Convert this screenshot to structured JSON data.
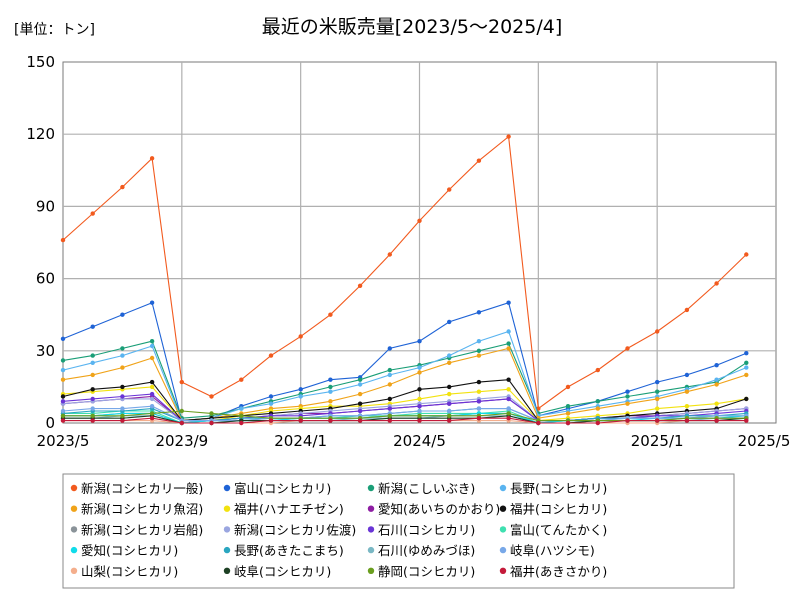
{
  "chart_data": {
    "type": "line",
    "title": "最近の米販売量[2023/5～2025/4]",
    "unit_label": "[単位：トン]",
    "ylim": [
      0,
      150
    ],
    "y_ticks": [
      0,
      30,
      60,
      90,
      120,
      150
    ],
    "x_tick_labels": [
      "2023/5",
      "2023/9",
      "2024/1",
      "2024/5",
      "2024/9",
      "2025/1",
      "2025/5"
    ],
    "grid": true,
    "legend_position": "bottom",
    "months": [
      "2023/5",
      "2023/6",
      "2023/7",
      "2023/8",
      "2023/9",
      "2023/10",
      "2023/11",
      "2023/12",
      "2024/1",
      "2024/2",
      "2024/3",
      "2024/4",
      "2024/5",
      "2024/6",
      "2024/7",
      "2024/8",
      "2024/9",
      "2024/10",
      "2024/11",
      "2024/12",
      "2025/1",
      "2025/2",
      "2025/3",
      "2025/4"
    ],
    "series": [
      {
        "name": "新潟(コシヒカリ一般)",
        "color": "#f25a1e",
        "values": [
          76,
          87,
          98,
          110,
          17,
          11,
          18,
          28,
          36,
          45,
          57,
          70,
          84,
          97,
          109,
          119,
          6,
          15,
          22,
          31,
          38,
          47,
          58,
          70
        ]
      },
      {
        "name": "富山(コシヒカリ)",
        "color": "#1f63d6",
        "values": [
          35,
          40,
          45,
          50,
          1,
          2,
          7,
          11,
          14,
          18,
          19,
          31,
          34,
          42,
          46,
          50,
          3,
          6,
          9,
          13,
          17,
          20,
          24,
          29
        ]
      },
      {
        "name": "新潟(こしいぶき)",
        "color": "#1a9e77",
        "values": [
          26,
          28,
          31,
          34,
          2,
          3,
          6,
          9,
          12,
          15,
          18,
          22,
          24,
          27,
          30,
          33,
          4,
          7,
          9,
          11,
          13,
          15,
          17,
          25
        ]
      },
      {
        "name": "長野(コシヒカリ)",
        "color": "#5ab4f0",
        "values": [
          22,
          25,
          28,
          32,
          1,
          2,
          6,
          8,
          11,
          13,
          16,
          20,
          23,
          28,
          34,
          38,
          3,
          5,
          7,
          9,
          11,
          14,
          18,
          23
        ]
      },
      {
        "name": "新潟(コシヒカリ魚沼)",
        "color": "#f0a319",
        "values": [
          18,
          20,
          23,
          27,
          1,
          2,
          4,
          6,
          7,
          9,
          12,
          16,
          21,
          25,
          28,
          31,
          2,
          4,
          6,
          8,
          10,
          13,
          16,
          20
        ]
      },
      {
        "name": "福井(ハナエチゼン)",
        "color": "#f2e20f",
        "values": [
          12,
          13,
          14,
          15,
          1,
          1,
          3,
          5,
          6,
          7,
          7,
          8,
          10,
          12,
          13,
          14,
          1,
          2,
          3,
          4,
          6,
          7,
          8,
          10
        ]
      },
      {
        "name": "愛知(あいちのかおり)",
        "color": "#8e1ea3",
        "values": [
          8,
          9,
          10,
          11,
          1,
          1,
          2,
          3,
          4,
          4,
          5,
          6,
          7,
          8,
          9,
          10,
          1,
          1,
          2,
          3,
          3,
          4,
          5,
          6
        ]
      },
      {
        "name": "福井(コシヒカリ)",
        "color": "#111111",
        "values": [
          11,
          14,
          15,
          17,
          1,
          2,
          3,
          4,
          5,
          6,
          8,
          10,
          14,
          15,
          17,
          18,
          1,
          1,
          2,
          3,
          4,
          5,
          6,
          10
        ]
      },
      {
        "name": "新潟(コシヒカリ岩船)",
        "color": "#8a9399",
        "values": [
          3,
          3,
          4,
          4,
          0,
          1,
          1,
          1,
          2,
          2,
          2,
          3,
          3,
          3,
          4,
          4,
          0,
          0,
          1,
          1,
          1,
          2,
          2,
          2
        ]
      },
      {
        "name": "新潟(コシヒカリ佐渡)",
        "color": "#9aa6e0",
        "values": [
          8,
          9,
          10,
          10,
          1,
          1,
          2,
          3,
          4,
          5,
          6,
          7,
          8,
          9,
          10,
          11,
          1,
          1,
          2,
          2,
          3,
          4,
          5,
          6
        ]
      },
      {
        "name": "石川(コシヒカリ)",
        "color": "#6a35d6",
        "values": [
          9,
          10,
          11,
          12,
          1,
          1,
          2,
          3,
          3,
          4,
          5,
          6,
          7,
          8,
          9,
          10,
          1,
          1,
          2,
          2,
          3,
          3,
          4,
          5
        ]
      },
      {
        "name": "富山(てんたかく)",
        "color": "#3fe0b0",
        "values": [
          4,
          4,
          5,
          5,
          0,
          1,
          1,
          2,
          2,
          2,
          3,
          3,
          4,
          4,
          4,
          5,
          0,
          1,
          1,
          2,
          2,
          2,
          3,
          3
        ]
      },
      {
        "name": "愛知(コシヒカリ)",
        "color": "#10dcea",
        "values": [
          3,
          3,
          4,
          4,
          0,
          1,
          1,
          1,
          2,
          2,
          2,
          3,
          3,
          3,
          4,
          4,
          0,
          1,
          1,
          1,
          2,
          2,
          2,
          3
        ]
      },
      {
        "name": "長野(あきたこまち)",
        "color": "#2aa6c0",
        "values": [
          4,
          5,
          5,
          6,
          1,
          1,
          2,
          2,
          2,
          3,
          3,
          4,
          5,
          5,
          6,
          6,
          1,
          1,
          2,
          2,
          2,
          3,
          3,
          4
        ]
      },
      {
        "name": "石川(ゆめみづほ)",
        "color": "#7ab8c4",
        "values": [
          2,
          2,
          3,
          3,
          0,
          0,
          1,
          1,
          1,
          1,
          2,
          2,
          2,
          3,
          3,
          3,
          0,
          0,
          1,
          1,
          1,
          1,
          2,
          2
        ]
      },
      {
        "name": "岐阜(ハツシモ)",
        "color": "#78a8e8",
        "values": [
          5,
          6,
          6,
          7,
          1,
          1,
          1,
          2,
          2,
          3,
          3,
          4,
          5,
          5,
          6,
          6,
          1,
          1,
          1,
          2,
          2,
          2,
          3,
          3
        ]
      },
      {
        "name": "山梨(コシヒカリ)",
        "color": "#f4ae8c",
        "values": [
          1,
          1,
          1,
          1,
          0,
          0,
          0,
          0,
          1,
          1,
          1,
          1,
          1,
          1,
          1,
          1,
          0,
          0,
          0,
          0,
          0,
          1,
          1,
          1
        ]
      },
      {
        "name": "岐阜(コシヒカリ)",
        "color": "#1d4024",
        "values": [
          2,
          2,
          2,
          3,
          0,
          0,
          1,
          1,
          1,
          1,
          1,
          2,
          2,
          2,
          2,
          3,
          0,
          0,
          1,
          1,
          1,
          1,
          1,
          2
        ]
      },
      {
        "name": "静岡(コシヒカリ)",
        "color": "#6a9e1e",
        "values": [
          3,
          3,
          3,
          4,
          5,
          4,
          3,
          2,
          2,
          2,
          2,
          3,
          3,
          3,
          3,
          4,
          1,
          1,
          1,
          1,
          1,
          2,
          2,
          2
        ]
      },
      {
        "name": "福井(あきさかり)",
        "color": "#c41a3a",
        "values": [
          1,
          1,
          1,
          2,
          0,
          0,
          0,
          1,
          1,
          1,
          1,
          1,
          1,
          1,
          2,
          2,
          0,
          0,
          0,
          1,
          1,
          1,
          1,
          1
        ]
      }
    ]
  }
}
